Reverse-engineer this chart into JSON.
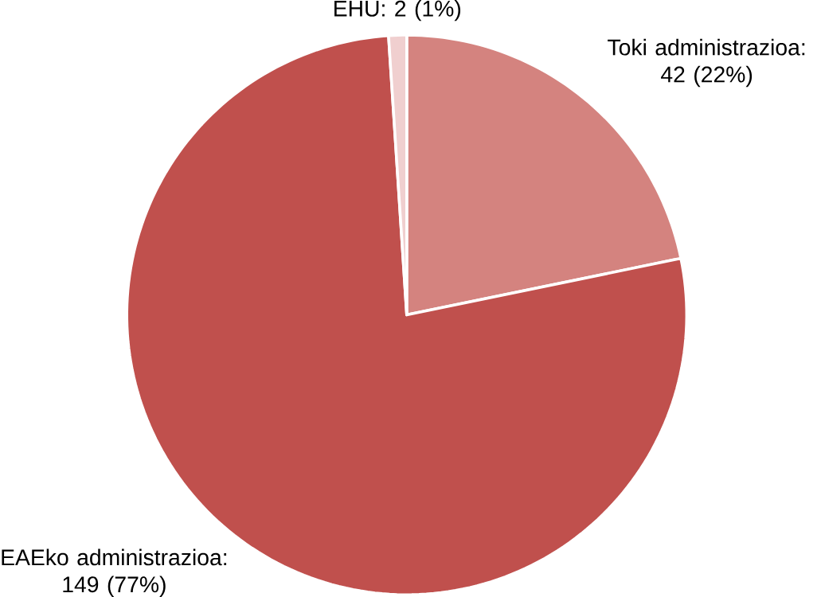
{
  "chart_data": {
    "type": "pie",
    "categories": [
      "Toki administrazioa",
      "EAEko administrazioa",
      "EHU"
    ],
    "values": [
      42,
      149,
      2
    ],
    "value_labels": [
      ": 42 (22%)",
      ": 149 (77%)",
      ": 2 (1%)"
    ],
    "colors": [
      "#d4837f",
      "#c0504d",
      "#f0cfcf"
    ]
  }
}
